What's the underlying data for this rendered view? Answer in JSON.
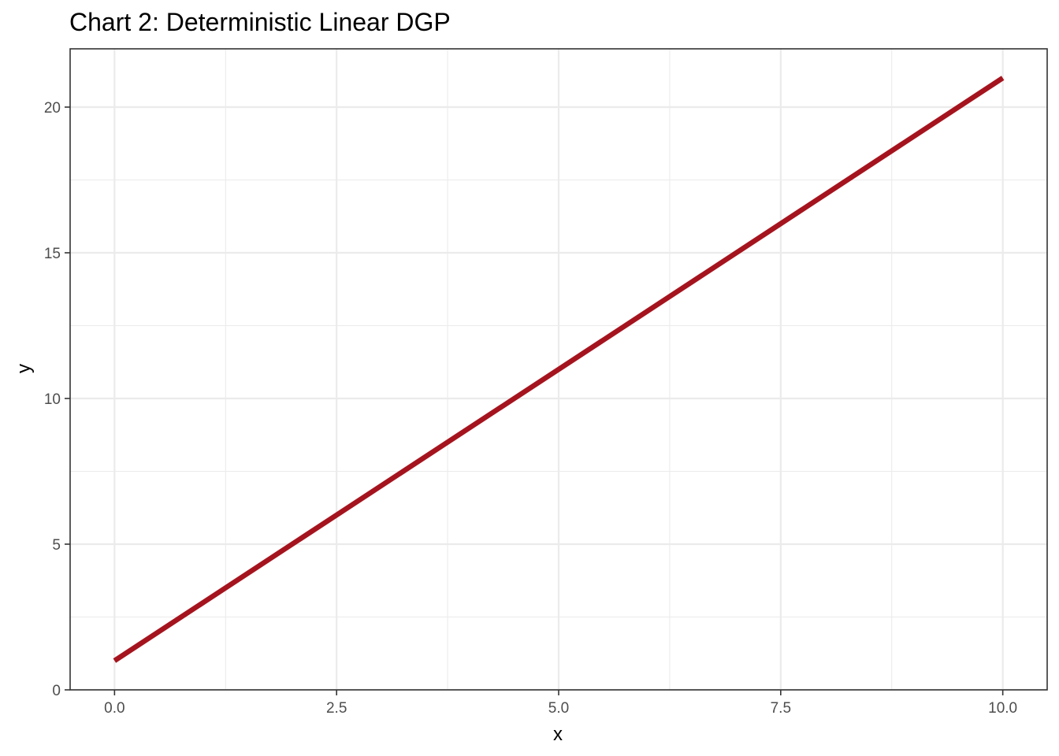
{
  "chart_data": {
    "type": "line",
    "title": "Chart 2: Deterministic Linear DGP",
    "xlabel": "x",
    "ylabel": "y",
    "xlim": [
      -0.5,
      10.5
    ],
    "ylim": [
      0,
      22
    ],
    "x_ticks": [
      0,
      2.5,
      5,
      7.5,
      10
    ],
    "x_tick_labels": [
      "0.0",
      "2.5",
      "5.0",
      "7.5",
      "10.0"
    ],
    "y_ticks": [
      0,
      5,
      10,
      15,
      20
    ],
    "y_tick_labels": [
      "0",
      "5",
      "10",
      "15",
      "20"
    ],
    "x_minor": [
      1.25,
      3.75,
      6.25,
      8.75
    ],
    "y_minor": [
      2.5,
      7.5,
      12.5,
      17.5
    ],
    "grid": true,
    "legend": "none",
    "series": [
      {
        "x": [
          0,
          10
        ],
        "y": [
          1,
          21
        ],
        "color": "#a5141e"
      }
    ]
  }
}
